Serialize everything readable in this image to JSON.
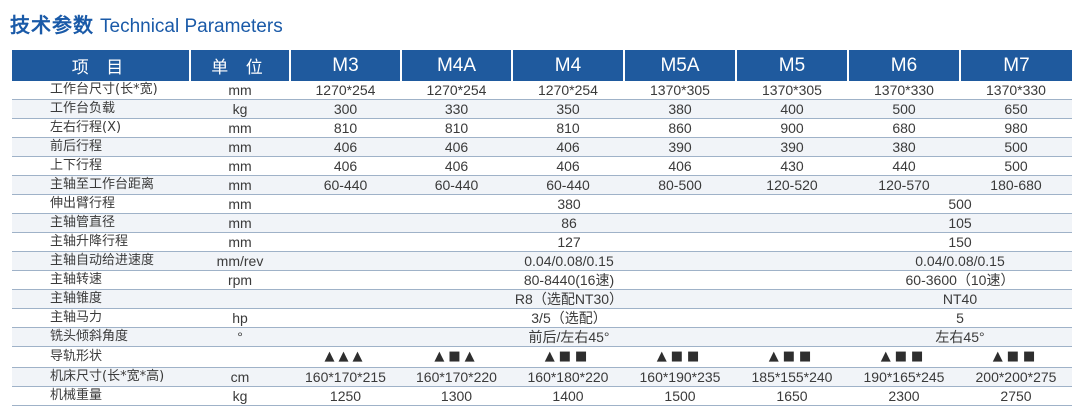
{
  "title": {
    "cn": "技术参数",
    "en": "Technical Parameters"
  },
  "header": [
    "项 目",
    "单 位",
    "M3",
    "M4A",
    "M4",
    "M5A",
    "M5",
    "M6",
    "M7"
  ],
  "rows": [
    {
      "name": "工作台尺寸(长*宽)",
      "unit": "mm",
      "cells": [
        {
          "v": "1270*254"
        },
        {
          "v": "1270*254"
        },
        {
          "v": "1270*254"
        },
        {
          "v": "1370*305"
        },
        {
          "v": "1370*305"
        },
        {
          "v": "1370*330"
        },
        {
          "v": "1370*330"
        }
      ]
    },
    {
      "name": "工作台负载",
      "unit": "kg",
      "cells": [
        {
          "v": "300"
        },
        {
          "v": "330"
        },
        {
          "v": "350"
        },
        {
          "v": "380"
        },
        {
          "v": "400"
        },
        {
          "v": "500"
        },
        {
          "v": "650"
        }
      ]
    },
    {
      "name": "左右行程(X)",
      "unit": "mm",
      "cells": [
        {
          "v": "810"
        },
        {
          "v": "810"
        },
        {
          "v": "810"
        },
        {
          "v": "860"
        },
        {
          "v": "900"
        },
        {
          "v": "680"
        },
        {
          "v": "980"
        }
      ]
    },
    {
      "name": "前后行程",
      "unit": "mm",
      "cells": [
        {
          "v": "406"
        },
        {
          "v": "406"
        },
        {
          "v": "406"
        },
        {
          "v": "390"
        },
        {
          "v": "390"
        },
        {
          "v": "380"
        },
        {
          "v": "500"
        }
      ]
    },
    {
      "name": "上下行程",
      "unit": "mm",
      "cells": [
        {
          "v": "406"
        },
        {
          "v": "406"
        },
        {
          "v": "406"
        },
        {
          "v": "406"
        },
        {
          "v": "430"
        },
        {
          "v": "440"
        },
        {
          "v": "500"
        }
      ]
    },
    {
      "name": "主轴至工作台距离",
      "unit": "mm",
      "cells": [
        {
          "v": "60-440"
        },
        {
          "v": "60-440"
        },
        {
          "v": "60-440"
        },
        {
          "v": "80-500"
        },
        {
          "v": "120-520"
        },
        {
          "v": "120-570"
        },
        {
          "v": "180-680"
        }
      ]
    },
    {
      "name": "伸出臂行程",
      "unit": "mm",
      "cells": [
        {
          "v": "380",
          "span": 5
        },
        {
          "v": "500",
          "span": 2
        }
      ]
    },
    {
      "name": "主轴管直径",
      "unit": "mm",
      "cells": [
        {
          "v": "86",
          "span": 5
        },
        {
          "v": "105",
          "span": 2
        }
      ]
    },
    {
      "name": "主轴升降行程",
      "unit": "mm",
      "cells": [
        {
          "v": "127",
          "span": 5
        },
        {
          "v": "150",
          "span": 2
        }
      ]
    },
    {
      "name": "主轴自动给进速度",
      "unit": "mm/rev",
      "cells": [
        {
          "v": "0.04/0.08/0.15",
          "span": 5
        },
        {
          "v": "0.04/0.08/0.15",
          "span": 2
        }
      ]
    },
    {
      "name": "主轴转速",
      "unit": "rpm",
      "cells": [
        {
          "v": "80-8440(16速)",
          "span": 5
        },
        {
          "v": "60-3600（10速）",
          "span": 2
        }
      ]
    },
    {
      "name": "主轴锥度",
      "unit": "",
      "cells": [
        {
          "v": "R8（选配NT30）",
          "span": 5
        },
        {
          "v": "NT40",
          "span": 2
        }
      ]
    },
    {
      "name": "主轴马力",
      "unit": "hp",
      "cells": [
        {
          "v": "3/5（选配）",
          "span": 5
        },
        {
          "v": "5",
          "span": 2
        }
      ]
    },
    {
      "name": "铣头倾斜角度",
      "unit": "°",
      "cells": [
        {
          "v": "前后/左右45°",
          "span": 5
        },
        {
          "v": "左右45°",
          "span": 2
        }
      ]
    },
    {
      "name": "导轨形状",
      "unit": "",
      "rail": true,
      "cells": [
        {
          "v": "▲▲▲"
        },
        {
          "v": "▲■▲"
        },
        {
          "v": "▲■■"
        },
        {
          "v": "▲■■"
        },
        {
          "v": "▲■■"
        },
        {
          "v": "▲■■"
        },
        {
          "v": "▲■■"
        }
      ]
    },
    {
      "name": "机床尺寸(长*宽*高)",
      "unit": "cm",
      "cells": [
        {
          "v": "160*170*215"
        },
        {
          "v": "160*170*220"
        },
        {
          "v": "160*180*220"
        },
        {
          "v": "160*190*235"
        },
        {
          "v": "185*155*240"
        },
        {
          "v": "190*165*245"
        },
        {
          "v": "200*200*275"
        }
      ]
    },
    {
      "name": "机械重量",
      "unit": "kg",
      "cells": [
        {
          "v": "1250"
        },
        {
          "v": "1300"
        },
        {
          "v": "1400"
        },
        {
          "v": "1500"
        },
        {
          "v": "1650"
        },
        {
          "v": "2300"
        },
        {
          "v": "2750"
        }
      ]
    }
  ]
}
